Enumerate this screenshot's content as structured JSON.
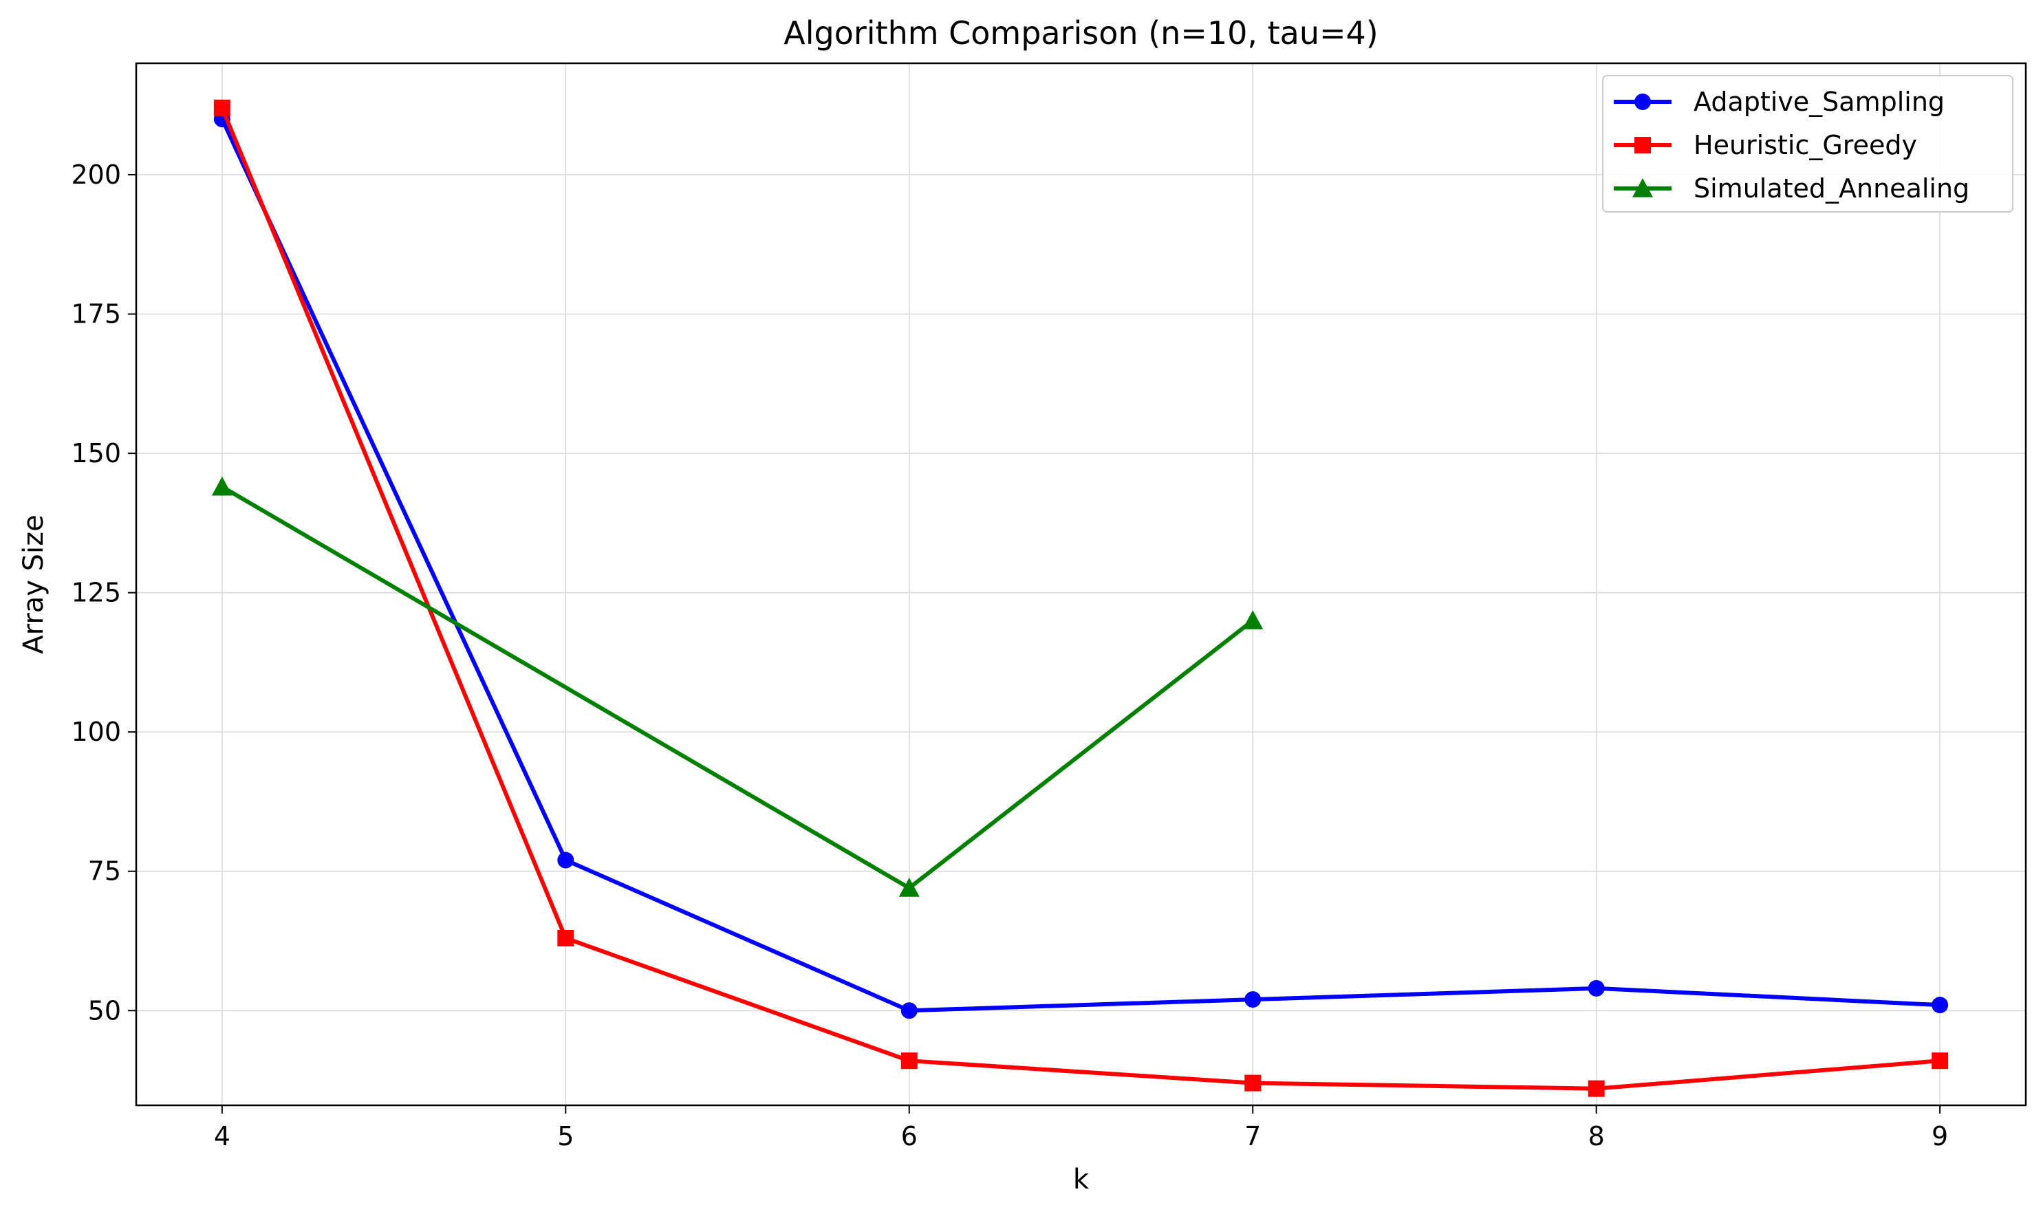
{
  "chart_data": {
    "type": "line",
    "title": "Algorithm Comparison (n=10, tau=4)",
    "xlabel": "k",
    "ylabel": "Array Size",
    "x": [
      4,
      5,
      6,
      7,
      8,
      9
    ],
    "xlim": [
      3.75,
      9.25
    ],
    "ylim": [
      33,
      220
    ],
    "yticks": [
      50,
      75,
      100,
      125,
      150,
      175,
      200
    ],
    "grid": true,
    "legend_position": "top-right",
    "series": [
      {
        "name": "Adaptive_Sampling",
        "color": "#0000ff",
        "marker": "circle",
        "points": [
          [
            4,
            210
          ],
          [
            5,
            77
          ],
          [
            6,
            50
          ],
          [
            7,
            52
          ],
          [
            8,
            54
          ],
          [
            9,
            51
          ]
        ]
      },
      {
        "name": "Heuristic_Greedy",
        "color": "#ff0000",
        "marker": "square",
        "points": [
          [
            4,
            212
          ],
          [
            5,
            63
          ],
          [
            6,
            41
          ],
          [
            7,
            37
          ],
          [
            8,
            36
          ],
          [
            9,
            41
          ]
        ]
      },
      {
        "name": "Simulated_Annealing",
        "color": "#008000",
        "marker": "triangle",
        "points": [
          [
            4,
            144
          ],
          [
            6,
            72
          ],
          [
            7,
            120
          ]
        ]
      }
    ]
  }
}
